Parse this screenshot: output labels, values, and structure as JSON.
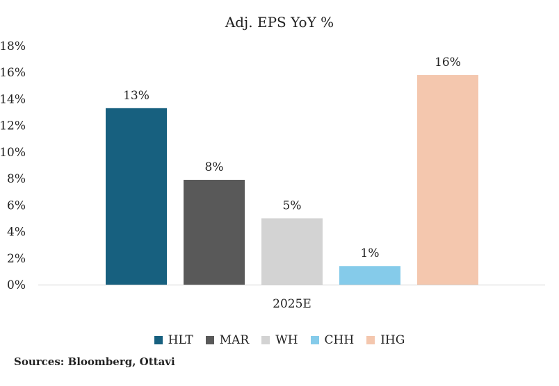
{
  "chart_data": {
    "type": "bar",
    "title": "Adj. EPS YoY %",
    "categories": [
      "2025E"
    ],
    "series": [
      {
        "name": "HLT",
        "values": [
          13.3
        ],
        "label": "13%",
        "color": "#17607F"
      },
      {
        "name": "MAR",
        "values": [
          7.9
        ],
        "label": "8%",
        "color": "#595959"
      },
      {
        "name": "WH",
        "values": [
          5.0
        ],
        "label": "5%",
        "color": "#D3D3D3"
      },
      {
        "name": "CHH",
        "values": [
          1.4
        ],
        "label": "1%",
        "color": "#85CBEA"
      },
      {
        "name": "IHG",
        "values": [
          15.8
        ],
        "label": "16%",
        "color": "#F4C7AE"
      }
    ],
    "y_ticks": [
      "0%",
      "2%",
      "4%",
      "6%",
      "8%",
      "10%",
      "12%",
      "14%",
      "16%",
      "18%"
    ],
    "ylim": [
      0,
      18
    ],
    "xlabel": "",
    "ylabel": "",
    "grid": false,
    "legend": "bottom"
  },
  "source": "Sources: Bloomberg, Ottavi"
}
